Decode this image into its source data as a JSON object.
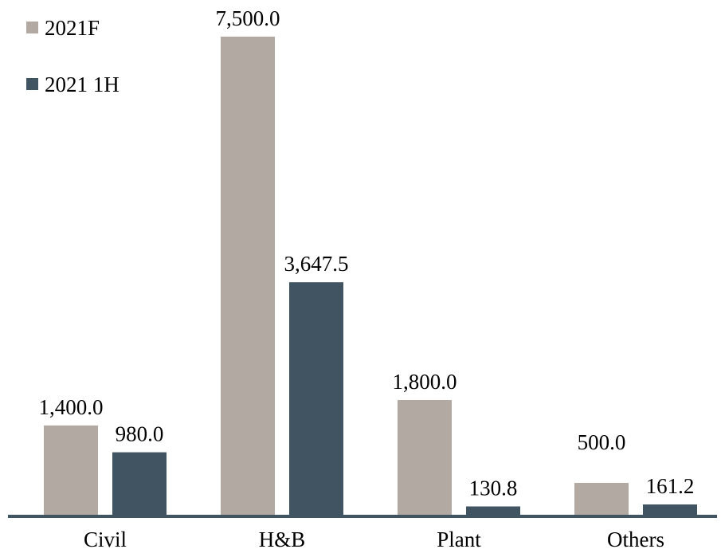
{
  "chart_data": {
    "type": "bar",
    "title": "",
    "xlabel": "",
    "ylabel": "",
    "categories": [
      "Civil",
      "H&B",
      "Plant",
      "Others"
    ],
    "series": [
      {
        "name": "2021F",
        "color": "#b2a9a2",
        "values": [
          1400.0,
          7500.0,
          1800.0,
          500.0
        ],
        "labels": [
          "1,400.0",
          "7,500.0",
          "1,800.0",
          "500.0"
        ]
      },
      {
        "name": "2021 1H",
        "color": "#415461",
        "values": [
          980.0,
          3647.5,
          130.8,
          161.2
        ],
        "labels": [
          "980.0",
          "3,647.5",
          "130.8",
          "161.2"
        ]
      }
    ],
    "ylim": [
      0,
      7500
    ],
    "grid": false,
    "legend_position": "top-left",
    "axis_color": "#415461"
  }
}
